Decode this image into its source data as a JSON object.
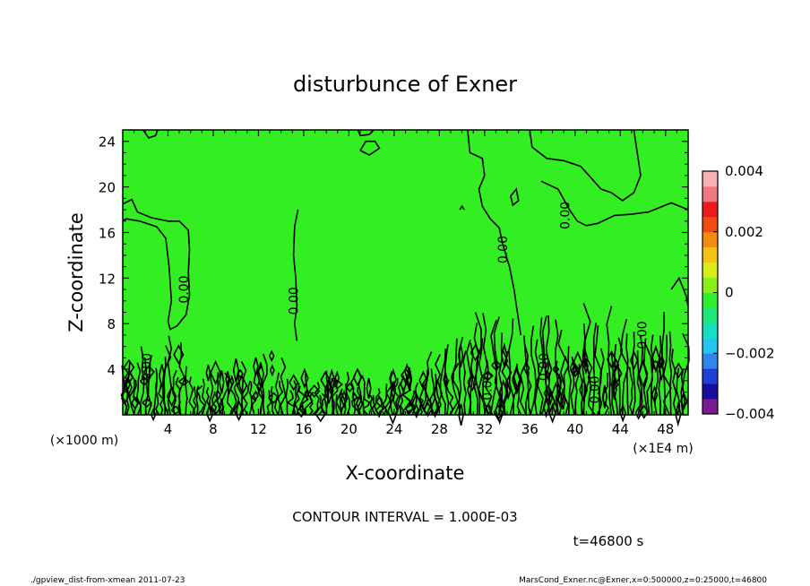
{
  "chart_data": {
    "type": "heatmap",
    "title": "disturbunce of Exner",
    "xlabel": "X-coordinate",
    "ylabel": "Z-coordinate",
    "x_unit_note": "(×1E4 m)",
    "y_unit_note": "(×1000 m)",
    "xlim": [
      0,
      50
    ],
    "ylim": [
      0,
      25
    ],
    "x_ticks": [
      4,
      8,
      12,
      16,
      20,
      24,
      28,
      32,
      36,
      40,
      44,
      48
    ],
    "y_ticks": [
      4,
      8,
      12,
      16,
      20,
      24
    ],
    "contour_interval_text": "CONTOUR INTERVAL = 1.000E-03",
    "time_text": "t=46800 s",
    "contour_label_text": "0.00",
    "contour_label_positions": [
      {
        "x": 5.8,
        "z": 11.0
      },
      {
        "x": 15.5,
        "z": 10.0
      },
      {
        "x": 34.0,
        "z": 14.5
      },
      {
        "x": 39.5,
        "z": 17.5
      },
      {
        "x": 2.5,
        "z": 4.2
      },
      {
        "x": 32.6,
        "z": 2.5
      },
      {
        "x": 37.6,
        "z": 4.2
      },
      {
        "x": 42.1,
        "z": 2.2
      },
      {
        "x": 46.3,
        "z": 7.0
      }
    ],
    "colorbar": {
      "min": -0.004,
      "max": 0.004,
      "tick_values": [
        0.004,
        0.002,
        0,
        -0.002,
        -0.004
      ],
      "tick_labels": [
        "0.004",
        "0.002",
        "0",
        "−0.002",
        "−0.004"
      ],
      "colors": [
        "#7a1c8f",
        "#1a0d9e",
        "#1f3fd6",
        "#2f86ef",
        "#21c7f0",
        "#17e0c2",
        "#1fe67a",
        "#2ef02f",
        "#8aee19",
        "#d7ee17",
        "#f5c214",
        "#f48a10",
        "#f24a10",
        "#ee1a1a",
        "#f2767e",
        "#f7b1b4"
      ]
    },
    "field_color": "#33ee22"
  },
  "footer": {
    "left": "./gpview_dist-from-xmean   2011-07-23",
    "right": "MarsCond_Exner.nc@Exner,x=0:500000,z=0:25000,t=46800"
  }
}
